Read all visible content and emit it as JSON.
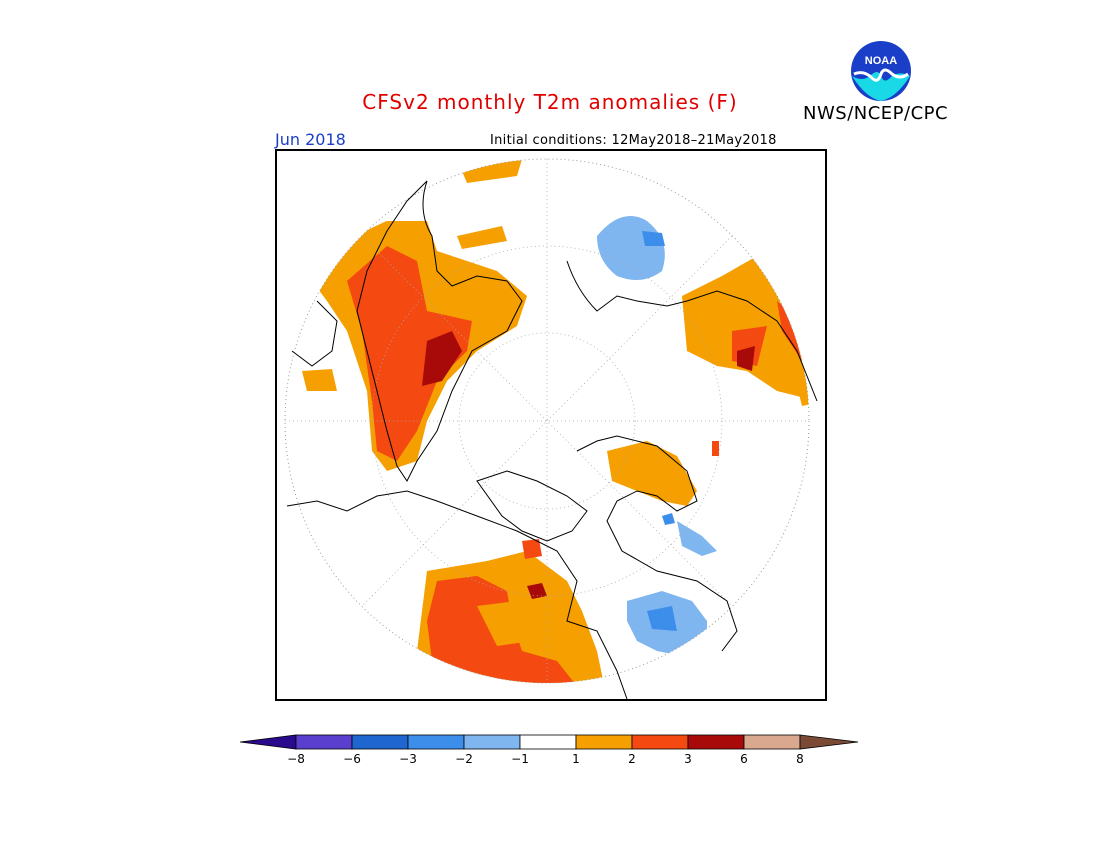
{
  "header": {
    "title": "CFSv2 monthly T2m anomalies (F)",
    "agency": "NWS/NCEP/CPC",
    "logo_text": "NOAA",
    "month": "Jun 2018",
    "initial_conditions": "Initial conditions: 12May2018–21May2018"
  },
  "colorbar": {
    "tick_labels": [
      "−8",
      "−6",
      "−3",
      "−2",
      "−1",
      "1",
      "2",
      "3",
      "6",
      "8"
    ],
    "colors": [
      "#2a0a8c",
      "#5a3fcf",
      "#1f66d0",
      "#3d8eea",
      "#7fb6f0",
      "#ffffff",
      "#f5a000",
      "#f44a12",
      "#a80a0a",
      "#d9a88f",
      "#7a4a34"
    ]
  },
  "map": {
    "projection": "north-polar-stereographic",
    "anomaly_colors": {
      "cold_light": "#7fb6f0",
      "cold_mid": "#3d8eea",
      "warm_light": "#f5a000",
      "warm_mid": "#f44a12",
      "warm_dark": "#a80a0a"
    }
  }
}
